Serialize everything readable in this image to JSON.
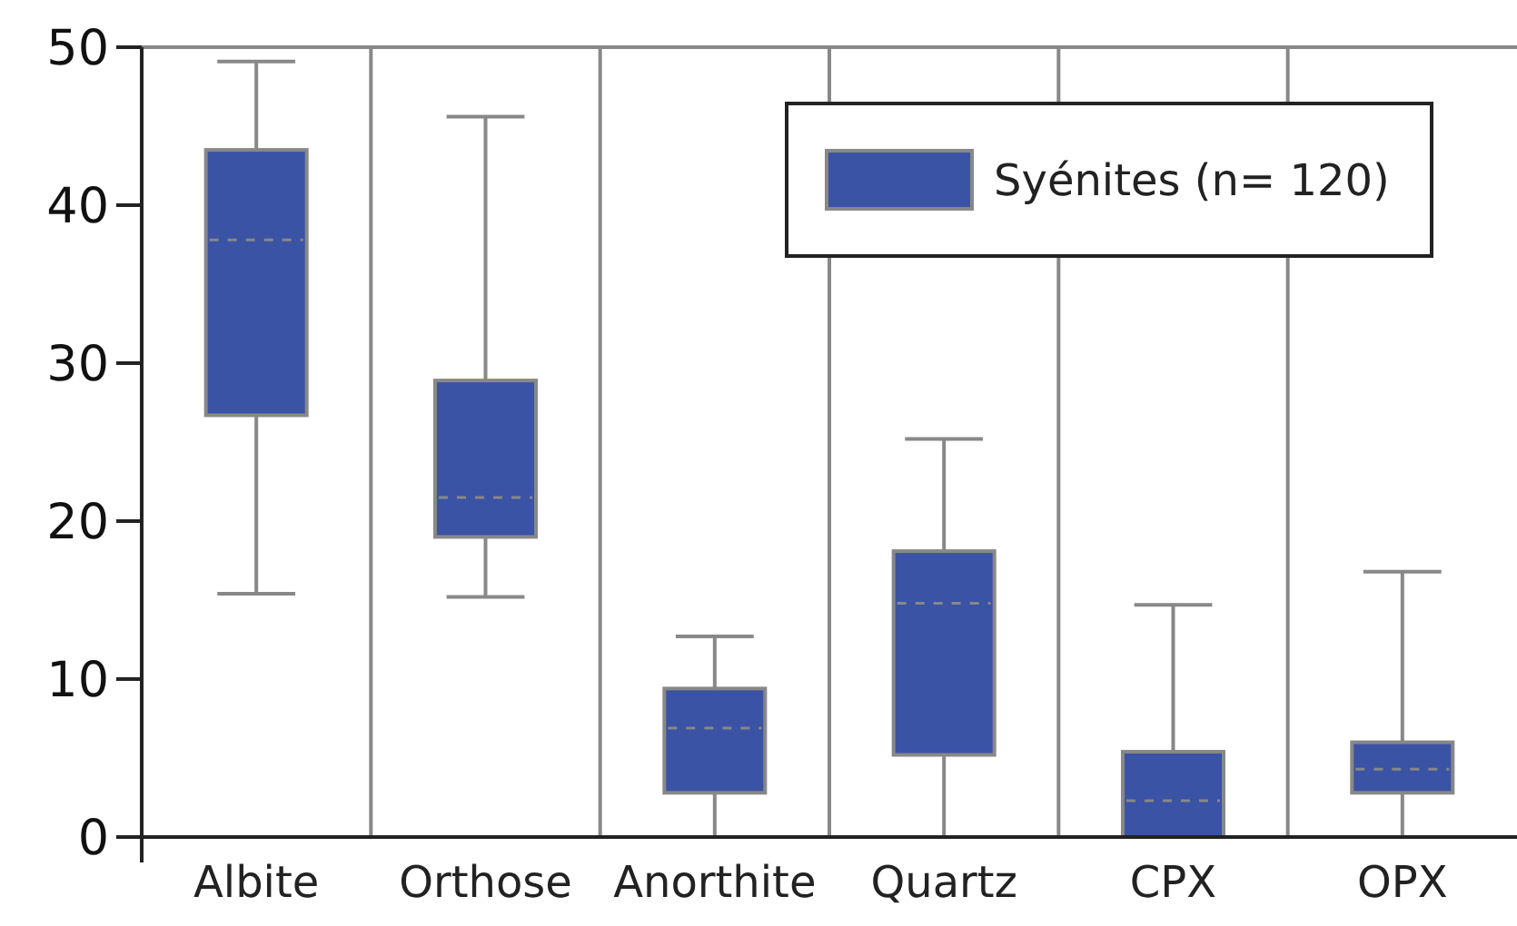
{
  "chart_data": {
    "type": "box",
    "categories": [
      "Albite",
      "Orthose",
      "Anorthite",
      "Quartz",
      "CPX",
      "OPX"
    ],
    "series": [
      {
        "name": "Syénites (n= 120)",
        "color": "#3a53a4",
        "boxes": [
          {
            "low": 15.4,
            "q1": 26.7,
            "median": 37.8,
            "q3": 43.5,
            "high": 49.1
          },
          {
            "low": 15.2,
            "q1": 19.0,
            "median": 21.5,
            "q3": 28.9,
            "high": 45.6
          },
          {
            "low": 0,
            "q1": 2.8,
            "median": 6.9,
            "q3": 9.4,
            "high": 12.7
          },
          {
            "low": 0,
            "q1": 5.2,
            "median": 14.8,
            "q3": 18.1,
            "high": 25.2
          },
          {
            "low": 0,
            "q1": 0,
            "median": 2.3,
            "q3": 5.4,
            "high": 14.7
          },
          {
            "low": 0,
            "q1": 2.8,
            "median": 4.3,
            "q3": 6.0,
            "high": 16.8
          }
        ]
      }
    ],
    "ylim": [
      0,
      50
    ],
    "yticks": [
      0,
      10,
      20,
      30,
      40,
      50
    ],
    "grid": "x",
    "legend": "top right"
  }
}
